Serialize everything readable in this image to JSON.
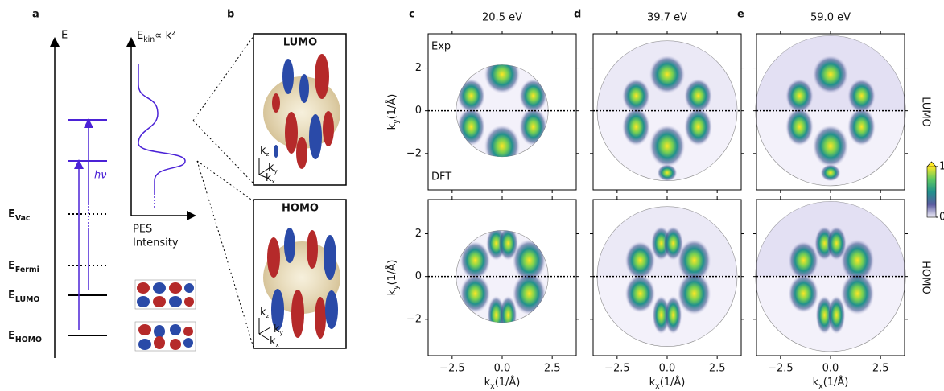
{
  "panel_a": {
    "label": "a",
    "energy_axis": "E",
    "levels": [
      {
        "main": "E",
        "sub": "Vac"
      },
      {
        "main": "E",
        "sub": "Fermi"
      },
      {
        "main": "E",
        "sub": "LUMO"
      },
      {
        "main": "E",
        "sub": "HOMO"
      }
    ],
    "photon": "hν",
    "spectrum_axis": {
      "main": "E",
      "sub": "kin",
      "rest": "∝ k²"
    },
    "spectrum_label": [
      "PES",
      "Intensity"
    ]
  },
  "panel_b": {
    "label": "b",
    "orbitals": [
      {
        "title": "LUMO",
        "axes": [
          {
            "main": "k",
            "sub": "z"
          },
          {
            "main": "k",
            "sub": "y"
          },
          {
            "main": "k",
            "sub": "x"
          }
        ]
      },
      {
        "title": "HOMO",
        "axes": [
          {
            "main": "k",
            "sub": "z"
          },
          {
            "main": "k",
            "sub": "y"
          },
          {
            "main": "k",
            "sub": "x"
          }
        ]
      }
    ]
  },
  "maps": {
    "columns": [
      {
        "label": "c",
        "title": "20.5 eV"
      },
      {
        "label": "d",
        "title": "39.7 eV"
      },
      {
        "label": "e",
        "title": "59.0 eV"
      }
    ],
    "rows": [
      "LUMO",
      "HOMO"
    ],
    "annotations": [
      "Exp",
      "DFT"
    ],
    "xlabel": {
      "main": "k",
      "sub": "x",
      "rest": "(1/Å)"
    },
    "ylabel": {
      "main": "k",
      "sub": "y",
      "rest": "(1/Å)"
    },
    "xlim": [
      -3.7,
      3.7
    ],
    "ylim": [
      -3.7,
      3.6
    ],
    "xticks": [
      {
        "value": -2.5,
        "label": "−2.5"
      },
      {
        "value": 0,
        "label": "0.0"
      },
      {
        "value": 2.5,
        "label": "2.5"
      }
    ],
    "yticks": [
      {
        "value": -2,
        "label": "−2"
      },
      0,
      2
    ],
    "colorbar": {
      "ticks": [
        0,
        1
      ]
    }
  }
}
